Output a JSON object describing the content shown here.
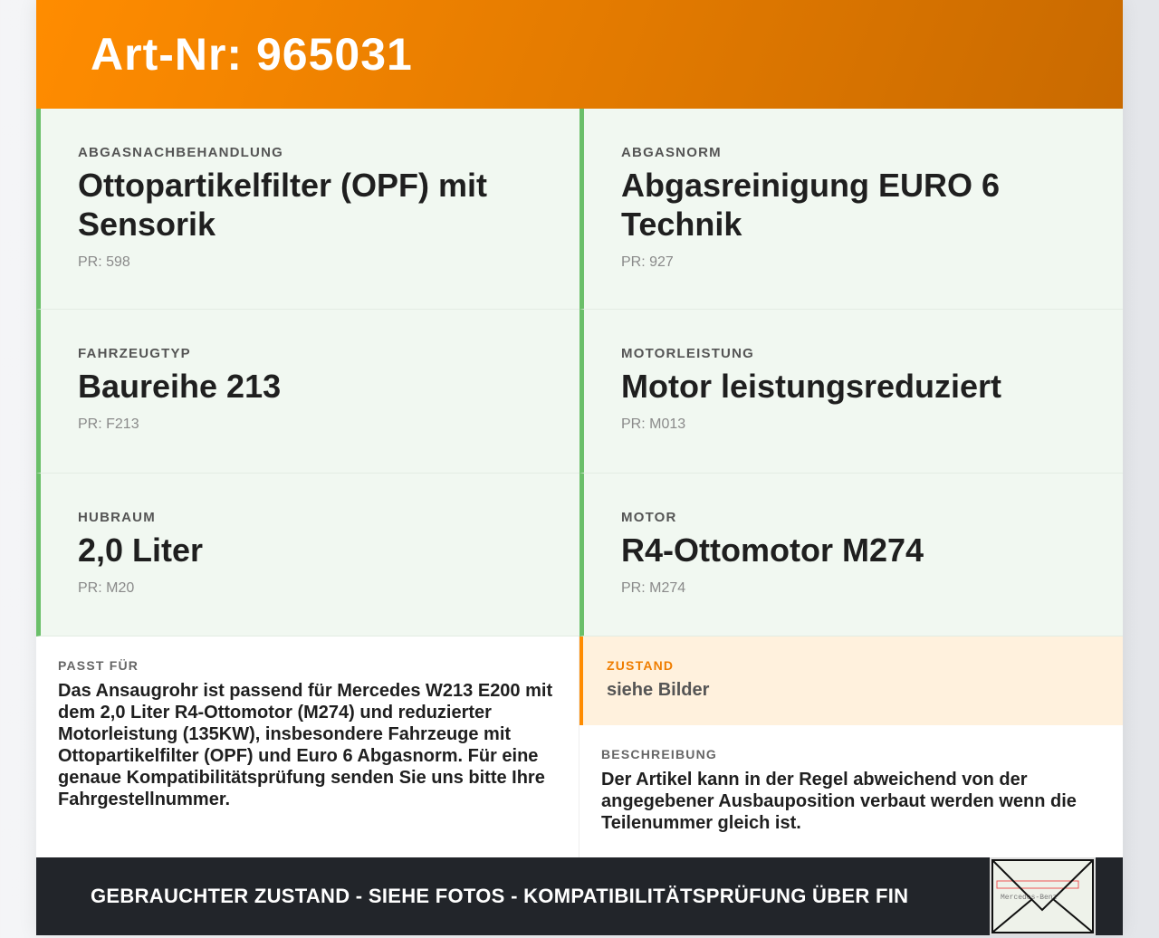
{
  "header": {
    "title": "Art-Nr: 965031"
  },
  "specs": [
    {
      "label": "Abgasnachbehandlung",
      "value": "Ottopartikelfilter (OPF) mit Sensorik",
      "pr": "PR: 598"
    },
    {
      "label": "Abgasnorm",
      "value": "Abgasreinigung EURO 6 Technik",
      "pr": "PR: 927"
    },
    {
      "label": "Fahrzeugtyp",
      "value": "Baureihe 213",
      "pr": "PR: F213"
    },
    {
      "label": "Motorleistung",
      "value": "Motor leistungsreduziert",
      "pr": "PR: M013"
    },
    {
      "label": "Hubraum",
      "value": "2,0 Liter",
      "pr": "PR: M20"
    },
    {
      "label": "Motor",
      "value": "R4-Ottomotor M274",
      "pr": "PR: M274"
    }
  ],
  "passt": {
    "label": "Passt für",
    "text": "Das Ansaugrohr ist passend für Mercedes W213 E200 mit dem 2,0 Liter R4-Ottomotor (M274) und reduzierter Motorleistung (135KW), insbesondere Fahrzeuge mit Ottopartikelfilter (OPF) und Euro 6 Abgasnorm. Für eine genaue Kompatibilitätsprüfung senden Sie uns bitte Ihre Fahrgestellnummer."
  },
  "zustand": {
    "label": "Zustand",
    "value": "siehe Bilder"
  },
  "beschreibung": {
    "label": "Beschreibung",
    "text": "Der Artikel kann in der Regel abweichend von der angegebener Ausbauposition verbaut werden wenn die Teilenummer gleich ist."
  },
  "footer": {
    "text": "GEBRAUCHTER ZUSTAND - SIEHE FOTOS - KOMPATIBILITÄTSPRÜFUNG ÜBER FIN",
    "image_text": "Mercedes-Benz"
  },
  "colors": {
    "accent": "#ff8c00",
    "green": "#6abf69",
    "dark": "#22252a"
  }
}
